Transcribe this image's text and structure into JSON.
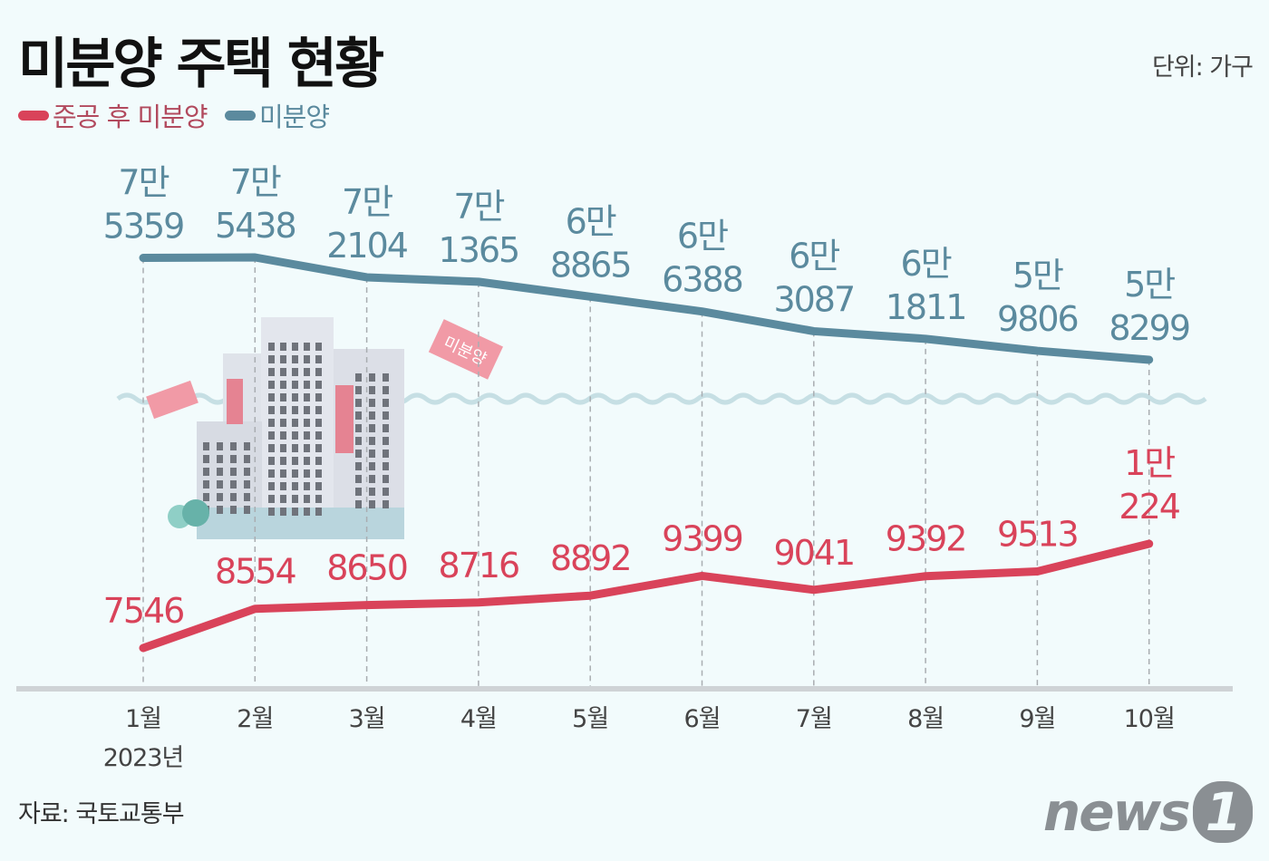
{
  "chart_data": {
    "type": "line",
    "title": "미분양 주택 현황",
    "unit": "단위: 가구",
    "categories": [
      "1월",
      "2월",
      "3월",
      "4월",
      "5월",
      "6월",
      "7월",
      "8월",
      "9월",
      "10월"
    ],
    "year_label": "2023년",
    "series": [
      {
        "name": "준공 후 미분양",
        "color": "#d9435a",
        "values": [
          7546,
          8554,
          8650,
          8716,
          8892,
          9399,
          9041,
          9392,
          9513,
          10224
        ],
        "labels": [
          [
            "7546"
          ],
          [
            "8554"
          ],
          [
            "8650"
          ],
          [
            "8716"
          ],
          [
            "8892"
          ],
          [
            "9399"
          ],
          [
            "9041"
          ],
          [
            "9392"
          ],
          [
            "9513"
          ],
          [
            "1만",
            "224"
          ]
        ]
      },
      {
        "name": "미분양",
        "color": "#5b8a9e",
        "values": [
          75359,
          75438,
          72104,
          71365,
          68865,
          66388,
          63087,
          61811,
          59806,
          58299
        ],
        "labels": [
          [
            "7만",
            "5359"
          ],
          [
            "7만",
            "5438"
          ],
          [
            "7만",
            "2104"
          ],
          [
            "7만",
            "1365"
          ],
          [
            "6만",
            "8865"
          ],
          [
            "6만",
            "6388"
          ],
          [
            "6만",
            "3087"
          ],
          [
            "6만",
            "1811"
          ],
          [
            "5만",
            "9806"
          ],
          [
            "5만",
            "8299"
          ]
        ]
      }
    ],
    "axis_break": true,
    "grid": false,
    "legend_placement": "top-left"
  },
  "illustration_sign_text": "미분양",
  "source": "자료: 국토교통부",
  "logo": "news1"
}
